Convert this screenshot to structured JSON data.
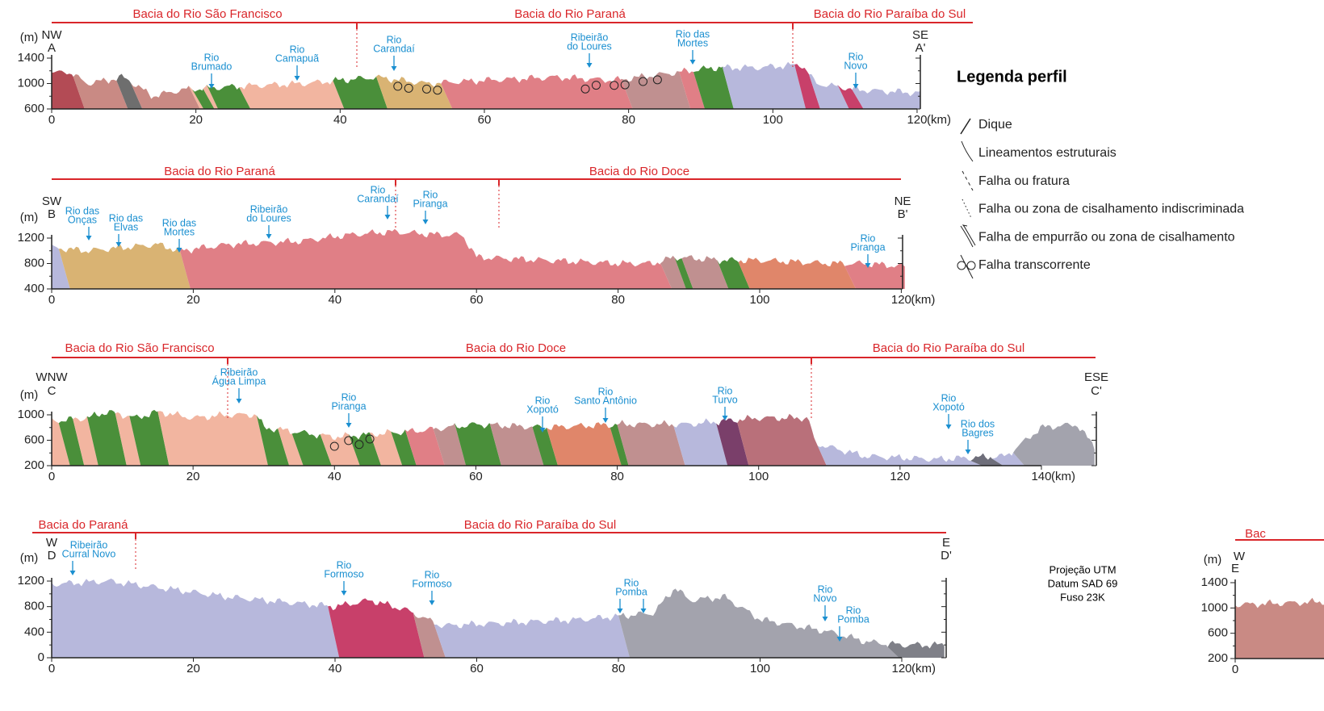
{
  "profiles": [
    {
      "start_direction": "NW",
      "start_label": "A",
      "end_direction": "SE",
      "end_label": "A'",
      "y_unit": "(m)",
      "x_unit": "(km)",
      "xticks": [
        0,
        20,
        40,
        60,
        80,
        100,
        120
      ],
      "yticks": [
        600,
        1000,
        1400
      ],
      "basins": [
        "Bacia do Rio São Francisco",
        "Bacia do Rio Paraná",
        "Bacia do Rio Paraíba do Sul"
      ],
      "rivers": [
        {
          "lines": [
            "Rio",
            "Brumado"
          ]
        },
        {
          "lines": [
            "Rio",
            "Camapuã"
          ]
        },
        {
          "lines": [
            "Rio",
            "Carandaí"
          ]
        },
        {
          "lines": [
            "Ribeirão",
            "do Loures"
          ]
        },
        {
          "lines": [
            "Rio das",
            "Mortes"
          ]
        },
        {
          "lines": [
            "Rio",
            "Novo"
          ]
        }
      ]
    },
    {
      "start_direction": "SW",
      "start_label": "B",
      "end_direction": "NE",
      "end_label": "B'",
      "y_unit": "(m)",
      "x_unit": "(km)",
      "xticks": [
        0,
        20,
        40,
        60,
        80,
        100,
        120
      ],
      "yticks": [
        400,
        800,
        1200
      ],
      "basins": [
        "Bacia do Rio Paraná",
        "Bacia do Rio Doce"
      ],
      "rivers": [
        {
          "lines": [
            "Rio das",
            "Onças"
          ]
        },
        {
          "lines": [
            "Rio das",
            "Elvas"
          ]
        },
        {
          "lines": [
            "Rio das",
            "Mortes"
          ]
        },
        {
          "lines": [
            "Ribeirão",
            "do Loures"
          ]
        },
        {
          "lines": [
            "Rio",
            "Carandaí"
          ]
        },
        {
          "lines": [
            "Rio",
            "Piranga"
          ]
        },
        {
          "lines": [
            "Rio",
            "Piranga"
          ]
        }
      ]
    },
    {
      "start_direction": "WNW",
      "start_label": "C",
      "end_direction": "ESE",
      "end_label": "C'",
      "y_unit": "(m)",
      "x_unit": "(km)",
      "xticks": [
        0,
        20,
        40,
        60,
        80,
        100,
        120,
        140
      ],
      "yticks": [
        200,
        600,
        1000
      ],
      "basins": [
        "Bacia do Rio São Francisco",
        "Bacia do Rio Doce",
        "Bacia do Rio Paraíba do Sul"
      ],
      "rivers": [
        {
          "lines": [
            "Ribeirão",
            "Água Limpa"
          ]
        },
        {
          "lines": [
            "Rio",
            "Piranga"
          ]
        },
        {
          "lines": [
            "Rio",
            "Xopotó"
          ]
        },
        {
          "lines": [
            "Rio",
            "Santo Antônio"
          ]
        },
        {
          "lines": [
            "Rio",
            "Turvo"
          ]
        },
        {
          "lines": [
            "Rio",
            "Xopotó"
          ]
        },
        {
          "lines": [
            "Rio dos",
            "Bagres"
          ]
        }
      ]
    },
    {
      "start_direction": "W",
      "start_label": "D",
      "end_direction": "E",
      "end_label": "D'",
      "y_unit": "(m)",
      "x_unit": "(km)",
      "xticks": [
        0,
        20,
        40,
        60,
        80,
        100,
        120
      ],
      "yticks": [
        0,
        400,
        800,
        1200
      ],
      "basins": [
        "Bacia do Paraná",
        "Bacia do Rio Paraíba do Sul"
      ],
      "rivers": [
        {
          "lines": [
            "Ribeirão",
            "Curral Novo"
          ]
        },
        {
          "lines": [
            "Rio",
            "Formoso"
          ]
        },
        {
          "lines": [
            "Rio",
            "Formoso"
          ]
        },
        {
          "lines": [
            "Rio",
            "Pomba"
          ]
        },
        {
          "lines": [
            "Rio",
            "Novo"
          ]
        },
        {
          "lines": [
            "Rio",
            "Pomba"
          ]
        }
      ]
    },
    {
      "start_direction": "W",
      "start_label": "E",
      "y_unit": "(m)",
      "xticks": [
        0
      ],
      "yticks": [
        200,
        600,
        1000,
        1400
      ],
      "basins": [
        "Bac"
      ],
      "rivers": []
    }
  ],
  "legend": {
    "title": "Legenda perfil",
    "items": [
      "Dique",
      "Lineamentos estruturais",
      "Falha ou fratura",
      "Falha ou zona de cisalhamento indiscriminada",
      "Falha de empurrão ou zona de cisalhamento",
      "Falha transcorrente"
    ]
  },
  "projection": [
    "Projeção UTM",
    "Datum SAD 69",
    "Fuso 23K"
  ]
}
